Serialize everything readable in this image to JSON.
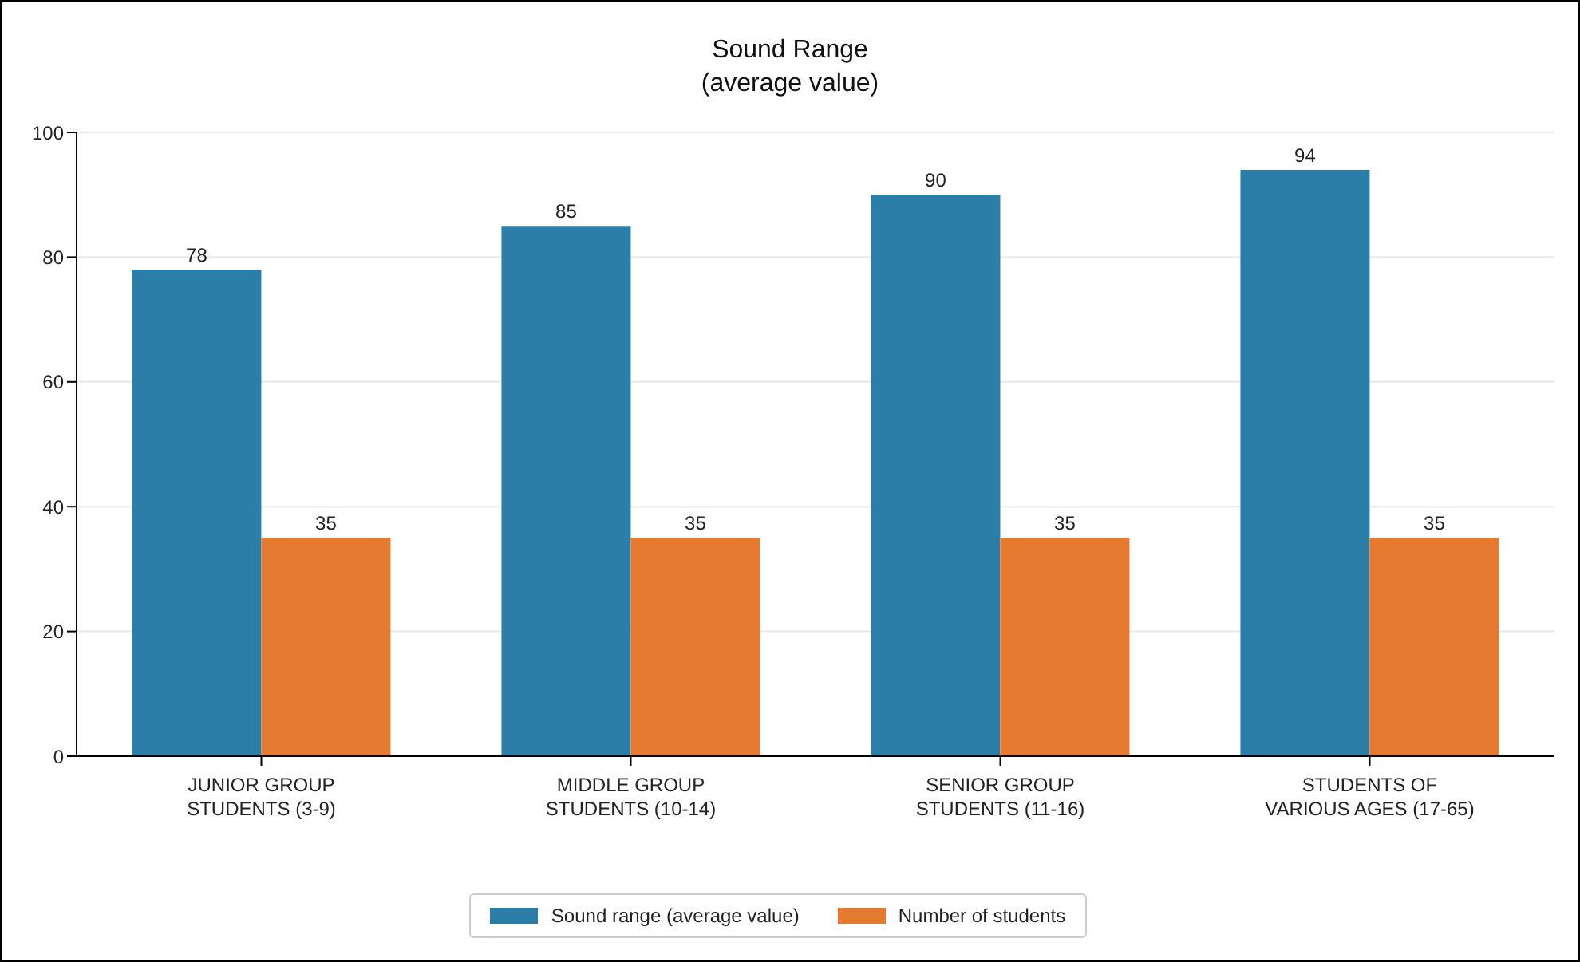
{
  "chart_data": {
    "type": "bar",
    "title": "Sound Range",
    "subtitle": "(average value)",
    "categories": [
      "JUNIOR GROUP\nSTUDENTS (3-9)",
      "MIDDLE GROUP\nSTUDENTS (10-14)",
      "SENIOR GROUP\nSTUDENTS (11-16)",
      "STUDENTS OF\nVARIOUS AGES (17-65)"
    ],
    "series": [
      {
        "name": "Sound range (average value)",
        "color": "#2b7ea8",
        "values": [
          78,
          85,
          90,
          94
        ]
      },
      {
        "name": "Number of students",
        "color": "#e67a30",
        "values": [
          35,
          35,
          35,
          35
        ]
      }
    ],
    "ylim": [
      0,
      100
    ],
    "yticks": [
      0,
      20,
      40,
      60,
      80,
      100
    ],
    "grid": "y",
    "legend": "bottom",
    "data_labels": true
  }
}
